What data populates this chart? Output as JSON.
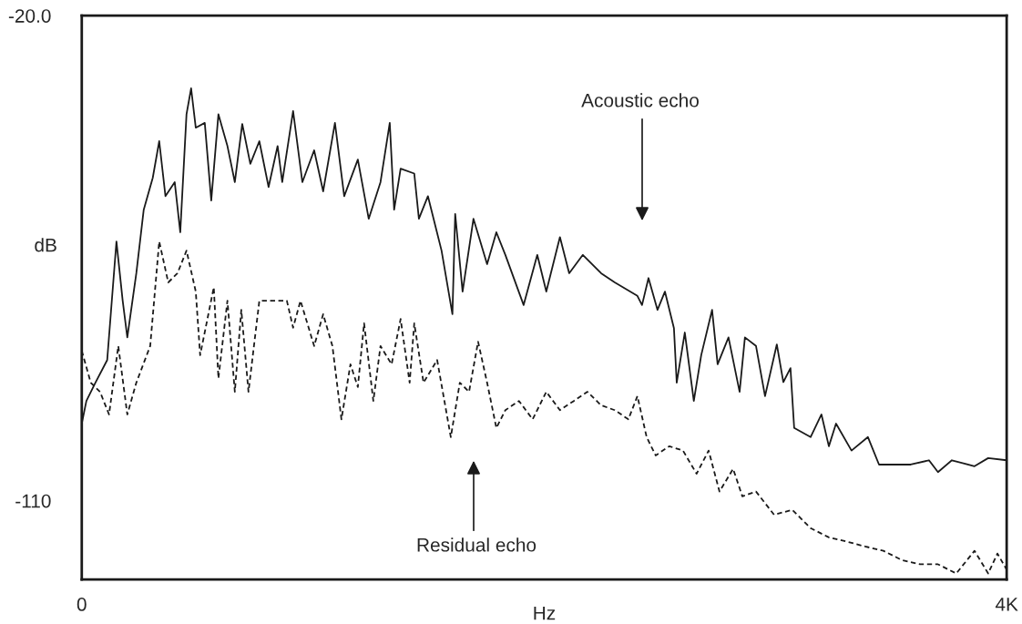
{
  "chart_data": {
    "type": "line",
    "xlabel": "Hz",
    "ylabel": "dB",
    "xlim": [
      0,
      4000
    ],
    "xticks": [
      0,
      {
        "value": 4000,
        "label": "4K"
      }
    ],
    "ylim": [
      -124.6,
      -20
    ],
    "yticks": [
      {
        "value": -20,
        "label": "-20.0"
      },
      -110
    ],
    "grid": false,
    "legend": false,
    "series": [
      {
        "color": "#1a1a1a",
        "line_style": "solid",
        "x": [
          0,
          20,
          59,
          110,
          150,
          177,
          197,
          236,
          268,
          307,
          335,
          362,
          402,
          426,
          453,
          473,
          493,
          532,
          560,
          591,
          630,
          662,
          694,
          729,
          768,
          808,
          847,
          867,
          914,
          954,
          1005,
          1044,
          1095,
          1135,
          1194,
          1241,
          1292,
          1332,
          1351,
          1379,
          1438,
          1458,
          1497,
          1556,
          1603,
          1615,
          1647,
          1694,
          1753,
          1793,
          1832,
          1911,
          1970,
          2009,
          2068,
          2108,
          2167,
          2246,
          2305,
          2403,
          2423,
          2451,
          2490,
          2522,
          2561,
          2573,
          2608,
          2647,
          2679,
          2726,
          2750,
          2797,
          2845,
          2868,
          2916,
          2955,
          3006,
          3034,
          3065,
          3081,
          3152,
          3199,
          3231,
          3262,
          3329,
          3400,
          3448,
          3585,
          3664,
          3703,
          3763,
          3861,
          3920,
          4000
        ],
        "values": [
          -95.7,
          -91.5,
          -88.1,
          -83.9,
          -61.9,
          -72.9,
          -79.7,
          -67.8,
          -56.0,
          -50.1,
          -43.3,
          -53.5,
          -50.9,
          -60.2,
          -38.3,
          -33.5,
          -40.8,
          -39.9,
          -54.3,
          -38.3,
          -44.2,
          -50.9,
          -40.1,
          -47.5,
          -43.3,
          -51.8,
          -44.2,
          -50.9,
          -37.7,
          -50.9,
          -45.0,
          -52.6,
          -39.9,
          -53.5,
          -46.7,
          -57.7,
          -50.9,
          -39.9,
          -56.0,
          -48.4,
          -49.3,
          -57.7,
          -53.5,
          -63.6,
          -75.4,
          -56.8,
          -71.2,
          -57.7,
          -66.1,
          -60.2,
          -64.4,
          -73.7,
          -64.4,
          -71.2,
          -61.1,
          -67.8,
          -64.4,
          -67.8,
          -69.5,
          -72.0,
          -73.7,
          -68.7,
          -74.6,
          -71.2,
          -78.0,
          -88.1,
          -78.8,
          -91.5,
          -83.0,
          -74.6,
          -84.7,
          -79.7,
          -89.8,
          -79.7,
          -81.3,
          -90.6,
          -81.0,
          -88.0,
          -85.4,
          -96.5,
          -98.2,
          -94.0,
          -99.9,
          -95.7,
          -100.7,
          -98.2,
          -103.3,
          -103.3,
          -102.5,
          -104.7,
          -102.5,
          -103.6,
          -102.1,
          -102.5
        ]
      },
      {
        "color": "#1a1a1a",
        "line_style": "dashed",
        "x": [
          0,
          39,
          79,
          118,
          158,
          197,
          236,
          296,
          335,
          374,
          414,
          453,
          493,
          512,
          571,
          591,
          630,
          662,
          690,
          721,
          768,
          847,
          887,
          914,
          946,
          1005,
          1044,
          1084,
          1123,
          1162,
          1194,
          1221,
          1261,
          1292,
          1340,
          1379,
          1418,
          1438,
          1478,
          1537,
          1596,
          1635,
          1675,
          1714,
          1753,
          1793,
          1832,
          1891,
          1950,
          2009,
          2068,
          2128,
          2187,
          2246,
          2305,
          2364,
          2403,
          2443,
          2482,
          2541,
          2600,
          2659,
          2711,
          2758,
          2817,
          2857,
          2916,
          2994,
          3073,
          3152,
          3231,
          3310,
          3388,
          3467,
          3546,
          3625,
          3703,
          3782,
          3861,
          3920,
          3960,
          4000
        ],
        "values": [
          -82.2,
          -88.1,
          -89.8,
          -94.0,
          -81.3,
          -94.0,
          -88.1,
          -81.3,
          -61.9,
          -69.5,
          -67.8,
          -63.6,
          -71.2,
          -83.0,
          -70.4,
          -87.3,
          -72.9,
          -89.8,
          -74.6,
          -89.8,
          -72.9,
          -72.9,
          -72.9,
          -77.9,
          -72.9,
          -81.3,
          -75.4,
          -81.3,
          -94.9,
          -84.7,
          -88.9,
          -77.1,
          -91.5,
          -81.3,
          -84.7,
          -76.3,
          -88.1,
          -77.1,
          -88.1,
          -83.9,
          -98.2,
          -88.1,
          -89.8,
          -80.5,
          -88.1,
          -96.5,
          -93.2,
          -91.5,
          -94.9,
          -89.8,
          -93.2,
          -91.5,
          -89.8,
          -92.3,
          -93.2,
          -94.9,
          -90.6,
          -98.2,
          -101.6,
          -99.9,
          -100.7,
          -105.0,
          -100.7,
          -108.3,
          -104.1,
          -109.2,
          -108.3,
          -112.6,
          -111.7,
          -115.1,
          -116.8,
          -117.6,
          -118.5,
          -119.3,
          -121.0,
          -121.8,
          -121.8,
          -123.5,
          -119.3,
          -123.5,
          -119.8,
          -122.8
        ]
      }
    ],
    "annotations": [
      "Acoustic echo",
      "Residual echo"
    ]
  }
}
